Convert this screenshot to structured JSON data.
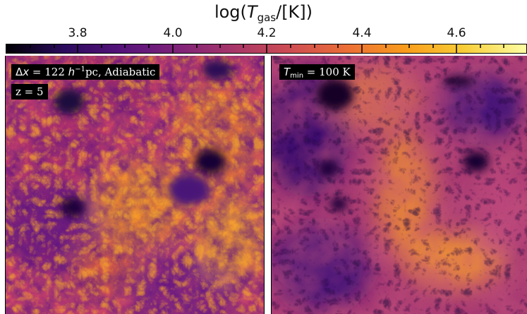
{
  "colorbar": {
    "title_prefix": "log(",
    "title_var": "T",
    "title_sub": "gas",
    "title_suffix": "/[K])",
    "ticks": [
      "3.8",
      "4.0",
      "4.2",
      "4.4",
      "4.6"
    ],
    "colormap": "plasma-like (black → purple → magenta → orange → yellow)",
    "colors": [
      "#000004",
      "#2a0b5c",
      "#55137a",
      "#7f2379",
      "#a83668",
      "#cf4e52",
      "#ec7035",
      "#f99d1c",
      "#f8cd37",
      "#fcfea4"
    ]
  },
  "panels": {
    "left": {
      "label_delta": "Δ",
      "label_x": "x",
      "label_eq": " = 122 ",
      "label_h": "h",
      "label_exp": "−1",
      "label_rest": "pc, Adiabatic",
      "redshift": "z = 5"
    },
    "right": {
      "label_T": "T",
      "label_sub": "min",
      "label_rest": " = 100 K"
    }
  }
}
